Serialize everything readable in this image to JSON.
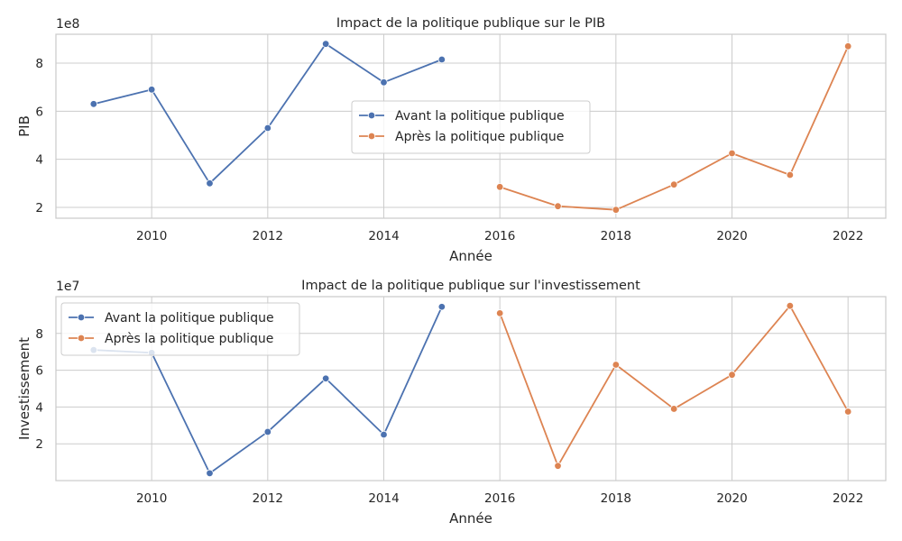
{
  "colors": {
    "before": "#4c72b0",
    "after": "#dd8452",
    "grid": "#cccccc",
    "text": "#262626"
  },
  "chart_data": [
    {
      "type": "line",
      "title": "Impact de la politique publique sur le PIB",
      "xlabel": "Année",
      "ylabel": "PIB",
      "y_offset_label": "1e8",
      "xlim": [
        2008.35,
        2022.65
      ],
      "ylim": [
        1.55,
        9.2
      ],
      "x_ticks": [
        2010,
        2012,
        2014,
        2016,
        2018,
        2020,
        2022
      ],
      "y_ticks": [
        2,
        4,
        6,
        8
      ],
      "legend_position": "center-right",
      "grid": true,
      "series": [
        {
          "name": "Avant la politique publique",
          "color": "#4c72b0",
          "x": [
            2009,
            2010,
            2011,
            2012,
            2013,
            2014,
            2015
          ],
          "values": [
            6.3,
            6.9,
            3.0,
            5.3,
            8.8,
            7.2,
            8.15
          ]
        },
        {
          "name": "Après la politique publique",
          "color": "#dd8452",
          "x": [
            2016,
            2017,
            2018,
            2019,
            2020,
            2021,
            2022
          ],
          "values": [
            2.85,
            2.05,
            1.9,
            2.95,
            4.25,
            3.35,
            8.7
          ]
        }
      ]
    },
    {
      "type": "line",
      "title": "Impact de la politique publique sur l'investissement",
      "xlabel": "Année",
      "ylabel": "Investissement",
      "y_offset_label": "1e7",
      "xlim": [
        2008.35,
        2022.65
      ],
      "ylim": [
        0,
        10.0
      ],
      "x_ticks": [
        2010,
        2012,
        2014,
        2016,
        2018,
        2020,
        2022
      ],
      "y_ticks": [
        2,
        4,
        6,
        8
      ],
      "legend_position": "top-left",
      "grid": true,
      "series": [
        {
          "name": "Avant la politique publique",
          "color": "#4c72b0",
          "x": [
            2009,
            2010,
            2011,
            2012,
            2013,
            2014,
            2015
          ],
          "values": [
            7.1,
            6.95,
            0.4,
            2.65,
            5.55,
            2.5,
            9.45
          ]
        },
        {
          "name": "Après la politique publique",
          "color": "#dd8452",
          "x": [
            2016,
            2017,
            2018,
            2019,
            2020,
            2021,
            2022
          ],
          "values": [
            9.1,
            0.8,
            6.3,
            3.9,
            5.75,
            9.5,
            3.75
          ]
        }
      ]
    }
  ]
}
